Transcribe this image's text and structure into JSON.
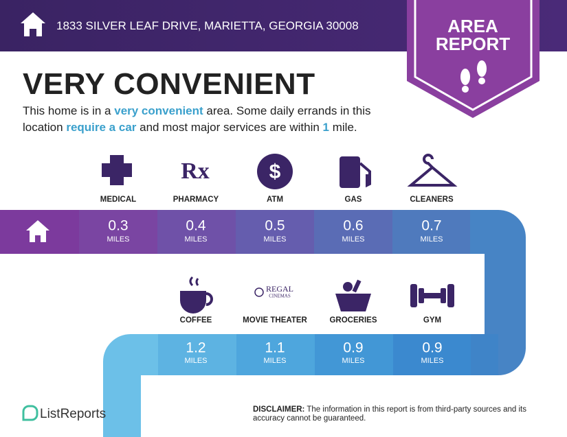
{
  "header": {
    "address": "1833 SILVER LEAF DRIVE, MARIETTA, GEORGIA 30008"
  },
  "badge": [
    "AREA",
    "REPORT"
  ],
  "headline": "VERY CONVENIENT",
  "description": [
    "This home is in a ",
    "very convenient",
    " area. Some daily errands in this location ",
    "require a car",
    " and most major services are within ",
    "1",
    " mile."
  ],
  "rows": [
    {
      "items": [
        {
          "name": "MEDICAL",
          "distance": 0.3,
          "unit": "MILES"
        },
        {
          "name": "PHARMACY",
          "distance": 0.4,
          "unit": "MILES"
        },
        {
          "name": "ATM",
          "distance": 0.5,
          "unit": "MILES"
        },
        {
          "name": "GAS",
          "distance": 0.6,
          "unit": "MILES"
        },
        {
          "name": "CLEANERS",
          "distance": 0.7,
          "unit": "MILES"
        }
      ]
    },
    {
      "items": [
        {
          "name": "COFFEE",
          "distance": 1.2,
          "unit": "MILES"
        },
        {
          "name": "MOVIE THEATER",
          "distance": 1.1,
          "unit": "MILES"
        },
        {
          "name": "GROCERIES",
          "distance": 0.9,
          "unit": "MILES"
        },
        {
          "name": "GYM",
          "distance": 0.9,
          "unit": "MILES"
        }
      ]
    }
  ],
  "icon_texts": {
    "regal": "REGAL",
    "cinemas": "CINEMAS",
    "rx": "Rx",
    "dollar": "$"
  },
  "footer": {
    "brand": "ListReports",
    "disclaimer_label": "DISCLAIMER:",
    "disclaimer": " The information in this report is from third-party sources and its accuracy cannot be guaranteed."
  }
}
